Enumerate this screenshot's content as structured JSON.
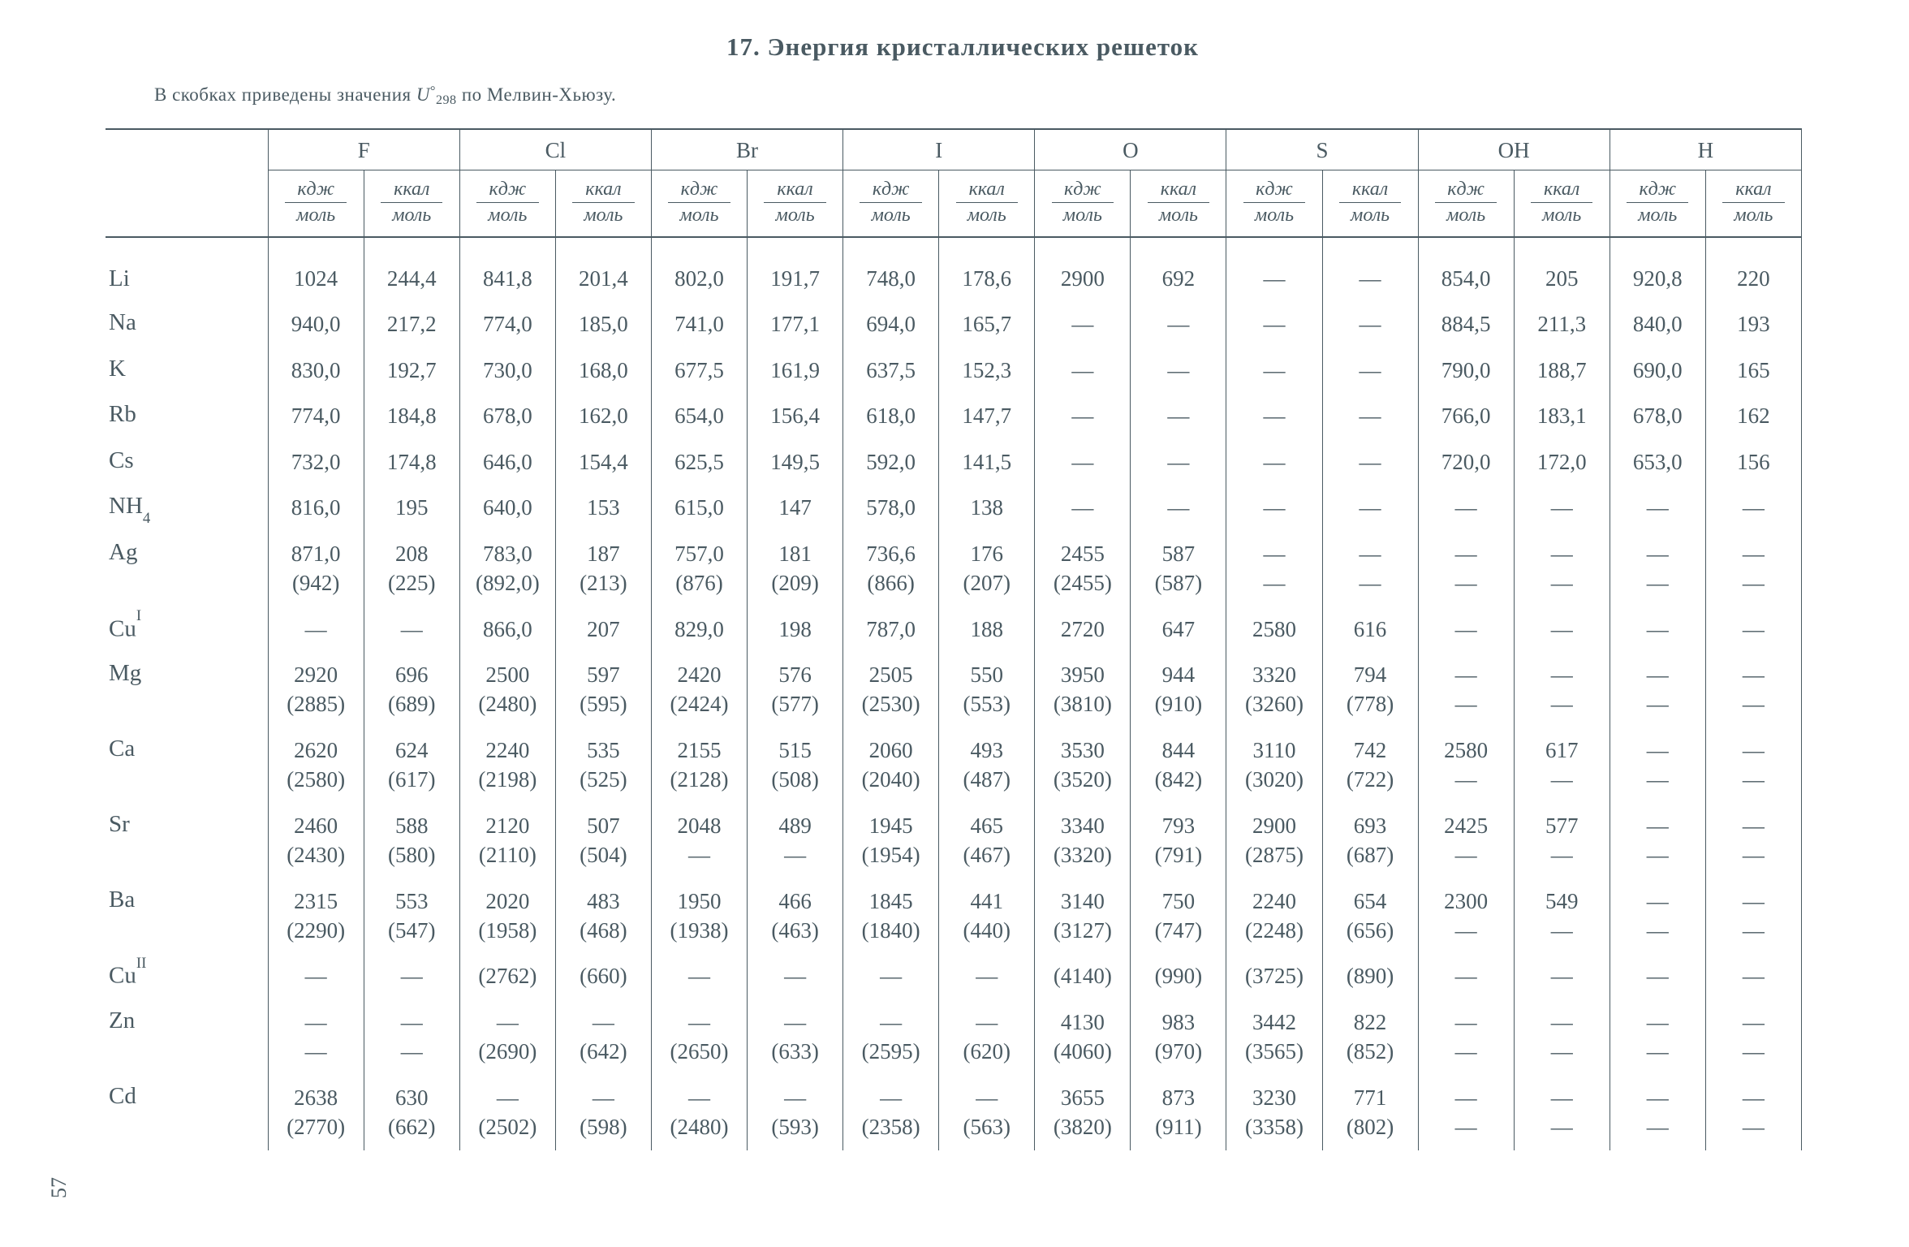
{
  "title": "17. Энергия кристаллических решеток",
  "note_prefix": "В скобках приведены значения  ",
  "note_symbol": "U",
  "note_sup": "°",
  "note_sub": "298",
  "note_suffix": " по Мелвин-Хьюзу.",
  "page_number": "57",
  "anions": [
    "F",
    "Cl",
    "Br",
    "I",
    "O",
    "S",
    "OH",
    "H"
  ],
  "unit_top": "кдж",
  "unit_top2": "ккал",
  "unit_bot": "моль",
  "dash": "—",
  "rows": [
    {
      "label": "Li",
      "cells": [
        "1024",
        "244,4",
        "841,8",
        "201,4",
        "802,0",
        "191,7",
        "748,0",
        "178,6",
        "2900",
        "692",
        "—",
        "—",
        "854,0",
        "205",
        "920,8",
        "220"
      ]
    },
    {
      "label": "Na",
      "cells": [
        "940,0",
        "217,2",
        "774,0",
        "185,0",
        "741,0",
        "177,1",
        "694,0",
        "165,7",
        "—",
        "—",
        "—",
        "—",
        "884,5",
        "211,3",
        "840,0",
        "193"
      ]
    },
    {
      "label": "K",
      "cells": [
        "830,0",
        "192,7",
        "730,0",
        "168,0",
        "677,5",
        "161,9",
        "637,5",
        "152,3",
        "—",
        "—",
        "—",
        "—",
        "790,0",
        "188,7",
        "690,0",
        "165"
      ]
    },
    {
      "label": "Rb",
      "cells": [
        "774,0",
        "184,8",
        "678,0",
        "162,0",
        "654,0",
        "156,4",
        "618,0",
        "147,7",
        "—",
        "—",
        "—",
        "—",
        "766,0",
        "183,1",
        "678,0",
        "162"
      ]
    },
    {
      "label": "Cs",
      "cells": [
        "732,0",
        "174,8",
        "646,0",
        "154,4",
        "625,5",
        "149,5",
        "592,0",
        "141,5",
        "—",
        "—",
        "—",
        "—",
        "720,0",
        "172,0",
        "653,0",
        "156"
      ]
    },
    {
      "label": "NH<sub>4</sub>",
      "cells": [
        "816,0",
        "195",
        "640,0",
        "153",
        "615,0",
        "147",
        "578,0",
        "138",
        "—",
        "—",
        "—",
        "—",
        "—",
        "—",
        "—",
        "—"
      ]
    },
    {
      "label": "Ag",
      "cells": [
        "871,0<br>(942)",
        "208<br>(225)",
        "783,0<br>(892,0)",
        "187<br>(213)",
        "757,0<br>(876)",
        "181<br>(209)",
        "736,6<br>(866)",
        "176<br>(207)",
        "2455<br>(2455)",
        "587<br>(587)",
        "—<br>—",
        "—<br>—",
        "—<br>—",
        "—<br>—",
        "—<br>—",
        "—<br>—"
      ]
    },
    {
      "label": "Cu<sup>I</sup>",
      "cells": [
        "—",
        "—",
        "866,0",
        "207",
        "829,0",
        "198",
        "787,0",
        "188",
        "2720",
        "647",
        "2580",
        "616",
        "—",
        "—",
        "—",
        "—"
      ]
    },
    {
      "label": "Mg",
      "cells": [
        "2920<br>(2885)",
        "696<br>(689)",
        "2500<br>(2480)",
        "597<br>(595)",
        "2420<br>(2424)",
        "576<br>(577)",
        "2505<br>(2530)",
        "550<br>(553)",
        "3950<br>(3810)",
        "944<br>(910)",
        "3320<br>(3260)",
        "794<br>(778)",
        "—<br>—",
        "—<br>—",
        "—<br>—",
        "—<br>—"
      ]
    },
    {
      "label": "Ca",
      "cells": [
        "2620<br>(2580)",
        "624<br>(617)",
        "2240<br>(2198)",
        "535<br>(525)",
        "2155<br>(2128)",
        "515<br>(508)",
        "2060<br>(2040)",
        "493<br>(487)",
        "3530<br>(3520)",
        "844<br>(842)",
        "3110<br>(3020)",
        "742<br>(722)",
        "2580<br>—",
        "617<br>—",
        "—<br>—",
        "—<br>—"
      ]
    },
    {
      "label": "Sr",
      "cells": [
        "2460<br>(2430)",
        "588<br>(580)",
        "2120<br>(2110)",
        "507<br>(504)",
        "2048<br>—",
        "489<br>—",
        "1945<br>(1954)",
        "465<br>(467)",
        "3340<br>(3320)",
        "793<br>(791)",
        "2900<br>(2875)",
        "693<br>(687)",
        "2425<br>—",
        "577<br>—",
        "—<br>—",
        "—<br>—"
      ]
    },
    {
      "label": "Ba",
      "cells": [
        "2315<br>(2290)",
        "553<br>(547)",
        "2020<br>(1958)",
        "483<br>(468)",
        "1950<br>(1938)",
        "466<br>(463)",
        "1845<br>(1840)",
        "441<br>(440)",
        "3140<br>(3127)",
        "750<br>(747)",
        "2240<br>(2248)",
        "654<br>(656)",
        "2300<br>—",
        "549<br>—",
        "—<br>—",
        "—<br>—"
      ]
    },
    {
      "label": "Cu<sup>II</sup>",
      "cells": [
        "—",
        "—",
        "(2762)",
        "(660)",
        "—",
        "—",
        "—",
        "—",
        "(4140)",
        "(990)",
        "(3725)",
        "(890)",
        "—",
        "—",
        "—",
        "—"
      ]
    },
    {
      "label": "Zn",
      "cells": [
        "—<br>—",
        "—<br>—",
        "—<br>(2690)",
        "—<br>(642)",
        "—<br>(2650)",
        "—<br>(633)",
        "—<br>(2595)",
        "—<br>(620)",
        "4130<br>(4060)",
        "983<br>(970)",
        "3442<br>(3565)",
        "822<br>(852)",
        "—<br>—",
        "—<br>—",
        "—<br>—",
        "—<br>—"
      ]
    },
    {
      "label": "Cd",
      "cells": [
        "2638<br>(2770)",
        "630<br>(662)",
        "—<br>(2502)",
        "—<br>(598)",
        "—<br>(2480)",
        "—<br>(593)",
        "—<br>(2358)",
        "—<br>(563)",
        "3655<br>(3820)",
        "873<br>(911)",
        "3230<br>(3358)",
        "771<br>(802)",
        "—<br>—",
        "—<br>—",
        "—<br>—",
        "—<br>—"
      ]
    }
  ],
  "colors": {
    "text": "#4a5a62",
    "rule": "#4a5a62",
    "background": "#ffffff"
  },
  "fontsizes": {
    "title": 31,
    "note": 23,
    "header_anion": 27,
    "header_unit": 24,
    "rowlabel": 29,
    "cell": 27,
    "pageno": 26
  }
}
